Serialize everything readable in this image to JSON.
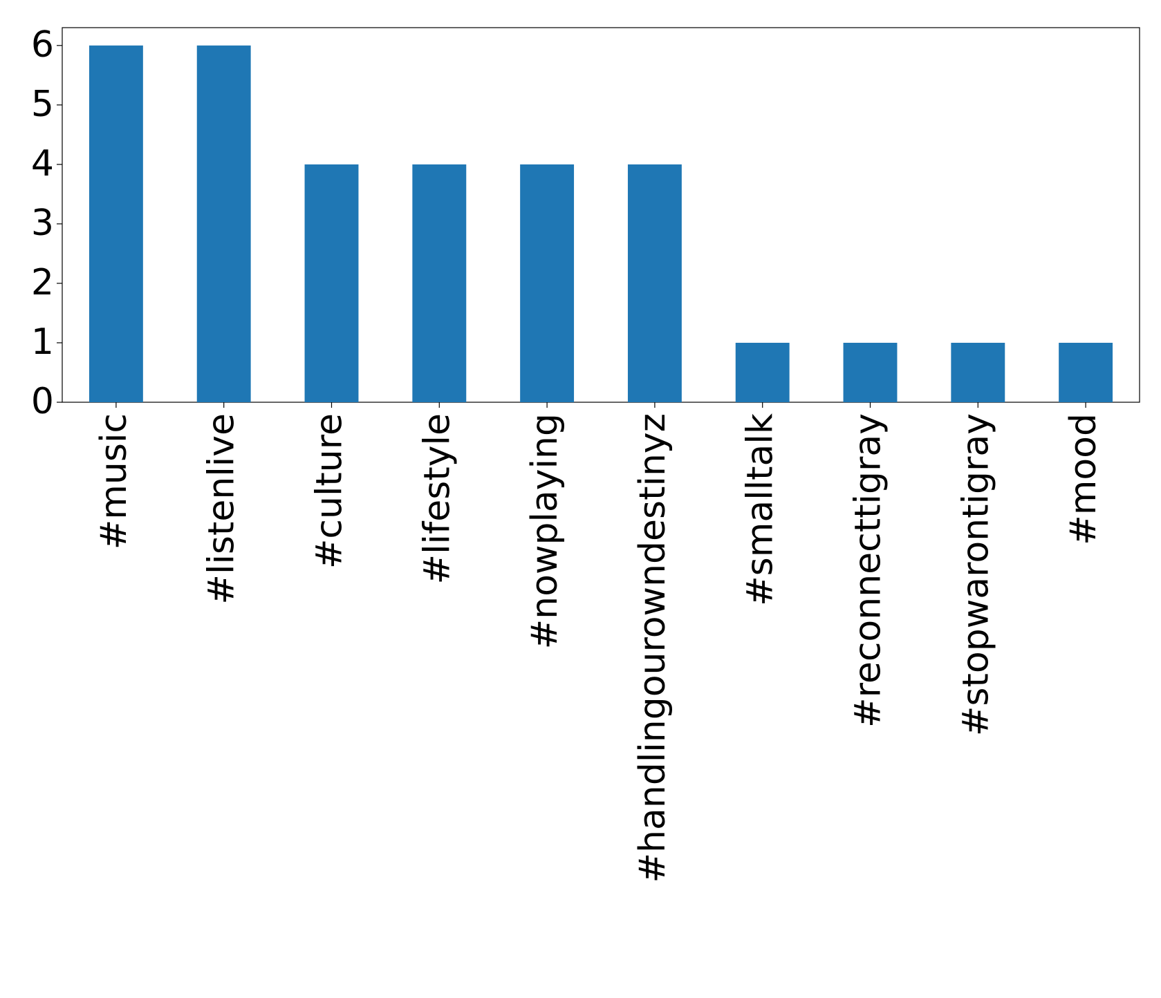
{
  "chart_data": {
    "type": "bar",
    "categories": [
      "#music",
      "#listenlive",
      "#culture",
      "#lifestyle",
      "#nowplaying",
      "#handlingourowndestinyz",
      "#smalltalk",
      "#reconnecttigray",
      "#stopwarontigray",
      "#mood"
    ],
    "values": [
      6,
      6,
      4,
      4,
      4,
      4,
      1,
      1,
      1,
      1
    ],
    "color": "#1f77b4",
    "ylim": [
      0,
      6.3
    ],
    "yticks": [
      0,
      1,
      2,
      3,
      4,
      5,
      6
    ],
    "grid": false
  }
}
